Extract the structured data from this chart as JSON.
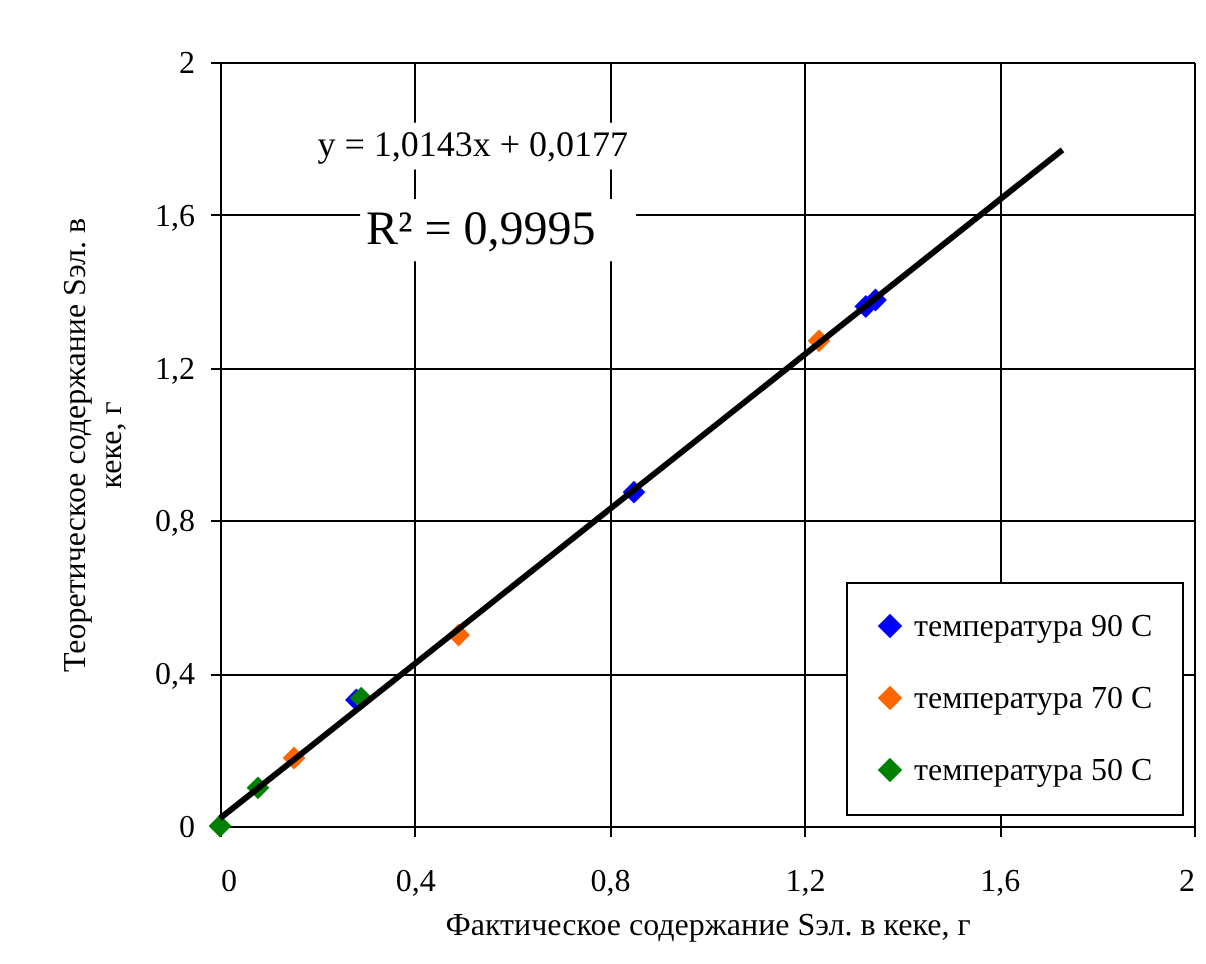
{
  "chart_data": {
    "type": "scatter",
    "xlabel": "Фактическое содержание Sэл. в кеке, г",
    "ylabel": "Теоретическое содержание Sэл. в кеке, г",
    "annotations": [
      "y = 1,0143x + 0,0177",
      "R² = 0,9995"
    ],
    "series": [
      {
        "name": "температура 90 С",
        "color": "#0000ff",
        "x": [
          0.28,
          0.85,
          1.326,
          1.346
        ],
        "values": [
          0.33,
          0.874,
          1.36,
          1.377
        ]
      },
      {
        "name": "температура 70 С",
        "color": "#ff6600",
        "x": [
          0.152,
          0.49,
          1.23
        ],
        "values": [
          0.178,
          0.5,
          1.27
        ]
      },
      {
        "name": "температура 50 С",
        "color": "#008000",
        "x": [
          0,
          0.078,
          0.29
        ],
        "values": [
          0,
          0.1,
          0.335
        ]
      },
      {
        "type": "line",
        "color": "#000000",
        "marker": "none",
        "x": [
          0,
          1.73
        ],
        "values": [
          0.02,
          1.77
        ]
      }
    ],
    "xlim": [
      0,
      2
    ],
    "ylim": [
      0,
      2
    ],
    "xticks": [
      0,
      {
        "value": 0.4,
        "label": "0,4"
      },
      {
        "value": 0.8,
        "label": "0,8"
      },
      {
        "value": 1.2,
        "label": "1,2"
      },
      {
        "value": 1.6,
        "label": "1,6"
      },
      2
    ],
    "yticks": [
      0,
      {
        "value": 0.4,
        "label": "0,4"
      },
      {
        "value": 0.8,
        "label": "0,8"
      },
      {
        "value": 1.2,
        "label": "1,2"
      },
      {
        "value": 1.6,
        "label": "1,6"
      },
      2
    ],
    "grid": true,
    "legend": "bottom right",
    "marker": "diamond",
    "line_style": "solid"
  }
}
